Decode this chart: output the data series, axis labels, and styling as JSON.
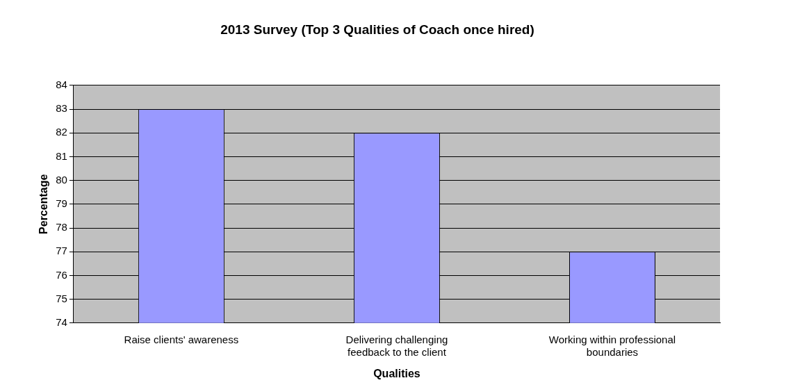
{
  "chart_data": {
    "type": "bar",
    "title": "2013 Survey (Top 3 Qualities of Coach once hired)",
    "xlabel": "Qualities",
    "ylabel": "Percentage",
    "categories": [
      "Raise clients' awareness",
      "Delivering challenging feedback to the client",
      "Working within professional boundaries"
    ],
    "values": [
      83,
      82,
      77
    ],
    "color": "#9999ff",
    "ylim": [
      74,
      84
    ],
    "yticks": [
      74,
      75,
      76,
      77,
      78,
      79,
      80,
      81,
      82,
      83,
      84
    ],
    "grid": "y",
    "legend": false
  }
}
